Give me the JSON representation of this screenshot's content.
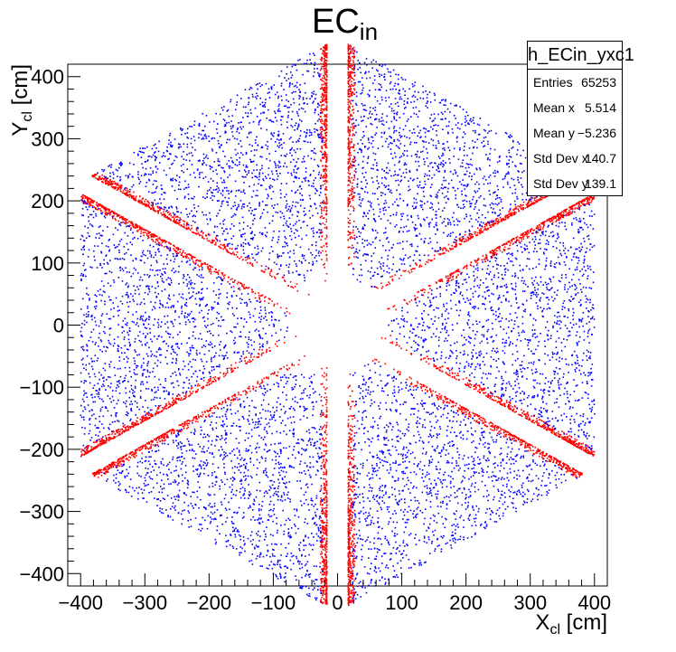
{
  "chart_data": {
    "type": "scatter",
    "title": "EC",
    "title_sub": "in",
    "xlabel": "X",
    "xlabel_sub": "cl",
    "xlabel_unit": " [cm]",
    "ylabel": "Y",
    "ylabel_sub": "cl",
    "ylabel_unit": " [cm]",
    "xlim": [
      -420,
      420
    ],
    "ylim": [
      -420,
      420
    ],
    "xticks": [
      -400,
      -300,
      -200,
      -100,
      0,
      100,
      200,
      300,
      400
    ],
    "yticks": [
      -400,
      -300,
      -200,
      -100,
      0,
      100,
      200,
      300,
      400
    ],
    "grid": false,
    "series": [
      {
        "color": "#ff0000"
      },
      {
        "color": "#0000ff"
      }
    ],
    "sectors": {
      "count": 6,
      "angles_deg": [
        0,
        60,
        120,
        180,
        240,
        300
      ],
      "inner_radius": 60,
      "outer_radius": 400,
      "half_width_at_outer": 205
    },
    "stats": {
      "name": "h_ECin_yxc1",
      "entries_label": "Entries",
      "entries": "65253",
      "mean_x_label": "Mean x",
      "mean_x": "5.514",
      "mean_y_label": "Mean y",
      "mean_y": "−5.236",
      "std_x_label": "Std Dev x",
      "std_x": "140.7",
      "std_y_label": "Std Dev y",
      "std_y": "139.1"
    }
  }
}
